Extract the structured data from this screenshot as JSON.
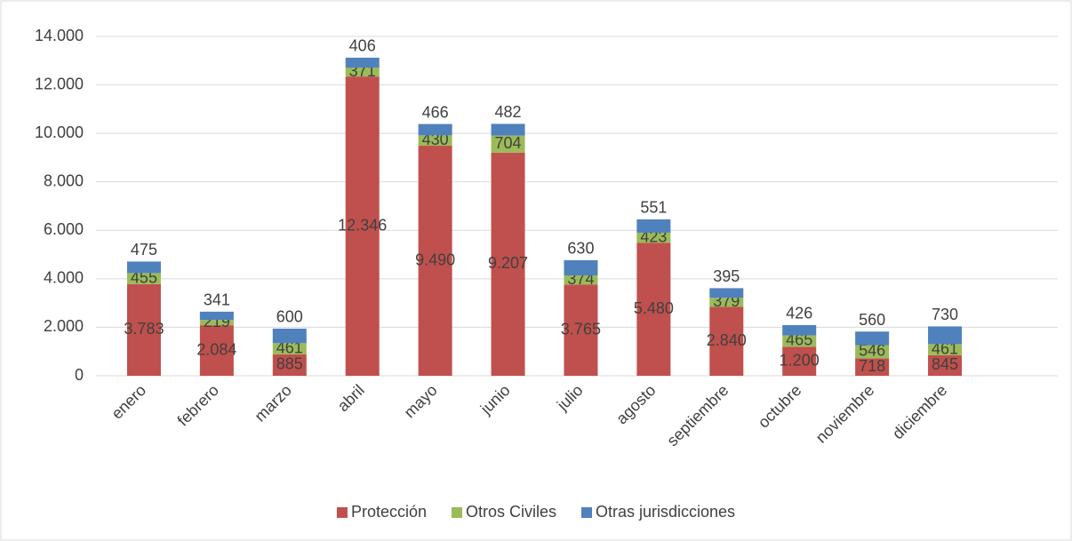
{
  "chart_data": {
    "type": "stacked_bar",
    "categories": [
      "enero",
      "febrero",
      "marzo",
      "abril",
      "mayo",
      "junio",
      "julio",
      "agosto",
      "septiembre",
      "octubre",
      "noviembre",
      "diciembre"
    ],
    "series": [
      {
        "name": "Protección",
        "color": "#c0504d",
        "values": [
          3783,
          2084,
          885,
          12346,
          9490,
          9207,
          3765,
          5480,
          2840,
          1200,
          718,
          845
        ],
        "value_labels": [
          "3.783",
          "2.084",
          "885",
          "12.346",
          "9.490",
          "9.207",
          "3.765",
          "5.480",
          "2.840",
          "1.200",
          "718",
          "845"
        ]
      },
      {
        "name": "Otros Civiles",
        "color": "#9bbb59",
        "values": [
          455,
          219,
          461,
          371,
          430,
          704,
          374,
          423,
          379,
          465,
          546,
          461
        ]
      },
      {
        "name": "Otras jurisdicciones",
        "color": "#4f81bd",
        "values": [
          475,
          341,
          600,
          406,
          466,
          482,
          630,
          551,
          395,
          426,
          560,
          730
        ]
      }
    ],
    "ylim": [
      0,
      14000
    ],
    "yticks": [
      0,
      {
        "value": 2000,
        "label": "2.000"
      },
      {
        "value": 4000,
        "label": "4.000"
      },
      {
        "value": 6000,
        "label": "6.000"
      },
      {
        "value": 8000,
        "label": "8.000"
      },
      {
        "value": 10000,
        "label": "10.000"
      },
      {
        "value": 12000,
        "label": "12.000"
      },
      {
        "value": 14000,
        "label": "14.000"
      }
    ],
    "grid": true,
    "legend": "bottom"
  }
}
